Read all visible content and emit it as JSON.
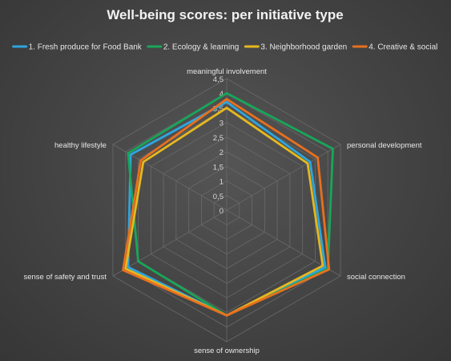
{
  "chart_data": {
    "type": "radar",
    "title": "Well-being scores: per initiative type",
    "axes": [
      "meaningful involvement",
      "personal development",
      "social connection",
      "sense of ownership",
      "sense of safety and trust",
      "healthy lifestyle"
    ],
    "ticks": [
      "0",
      "0,5",
      "1",
      "1,5",
      "2",
      "2,5",
      "3",
      "3,5",
      "4",
      "4,5"
    ],
    "rmin": 0,
    "rmax": 4.5,
    "legend_position": "top",
    "grid": true,
    "series": [
      {
        "name": "1. Fresh produce for Food Bank",
        "color": "#2EA6DE",
        "values": [
          3.7,
          3.3,
          3.9,
          3.6,
          3.9,
          3.8
        ]
      },
      {
        "name": "2. Ecology & learning",
        "color": "#18A65A",
        "values": [
          4.0,
          4.2,
          4.0,
          3.6,
          3.5,
          3.9
        ]
      },
      {
        "name": "3. Neighborhood garden",
        "color": "#E6B81E",
        "values": [
          3.5,
          3.2,
          3.8,
          3.6,
          4.0,
          3.3
        ]
      },
      {
        "name": "4. Creative & social",
        "color": "#E8701E",
        "values": [
          3.8,
          3.6,
          4.05,
          3.6,
          4.1,
          3.4
        ]
      }
    ]
  }
}
